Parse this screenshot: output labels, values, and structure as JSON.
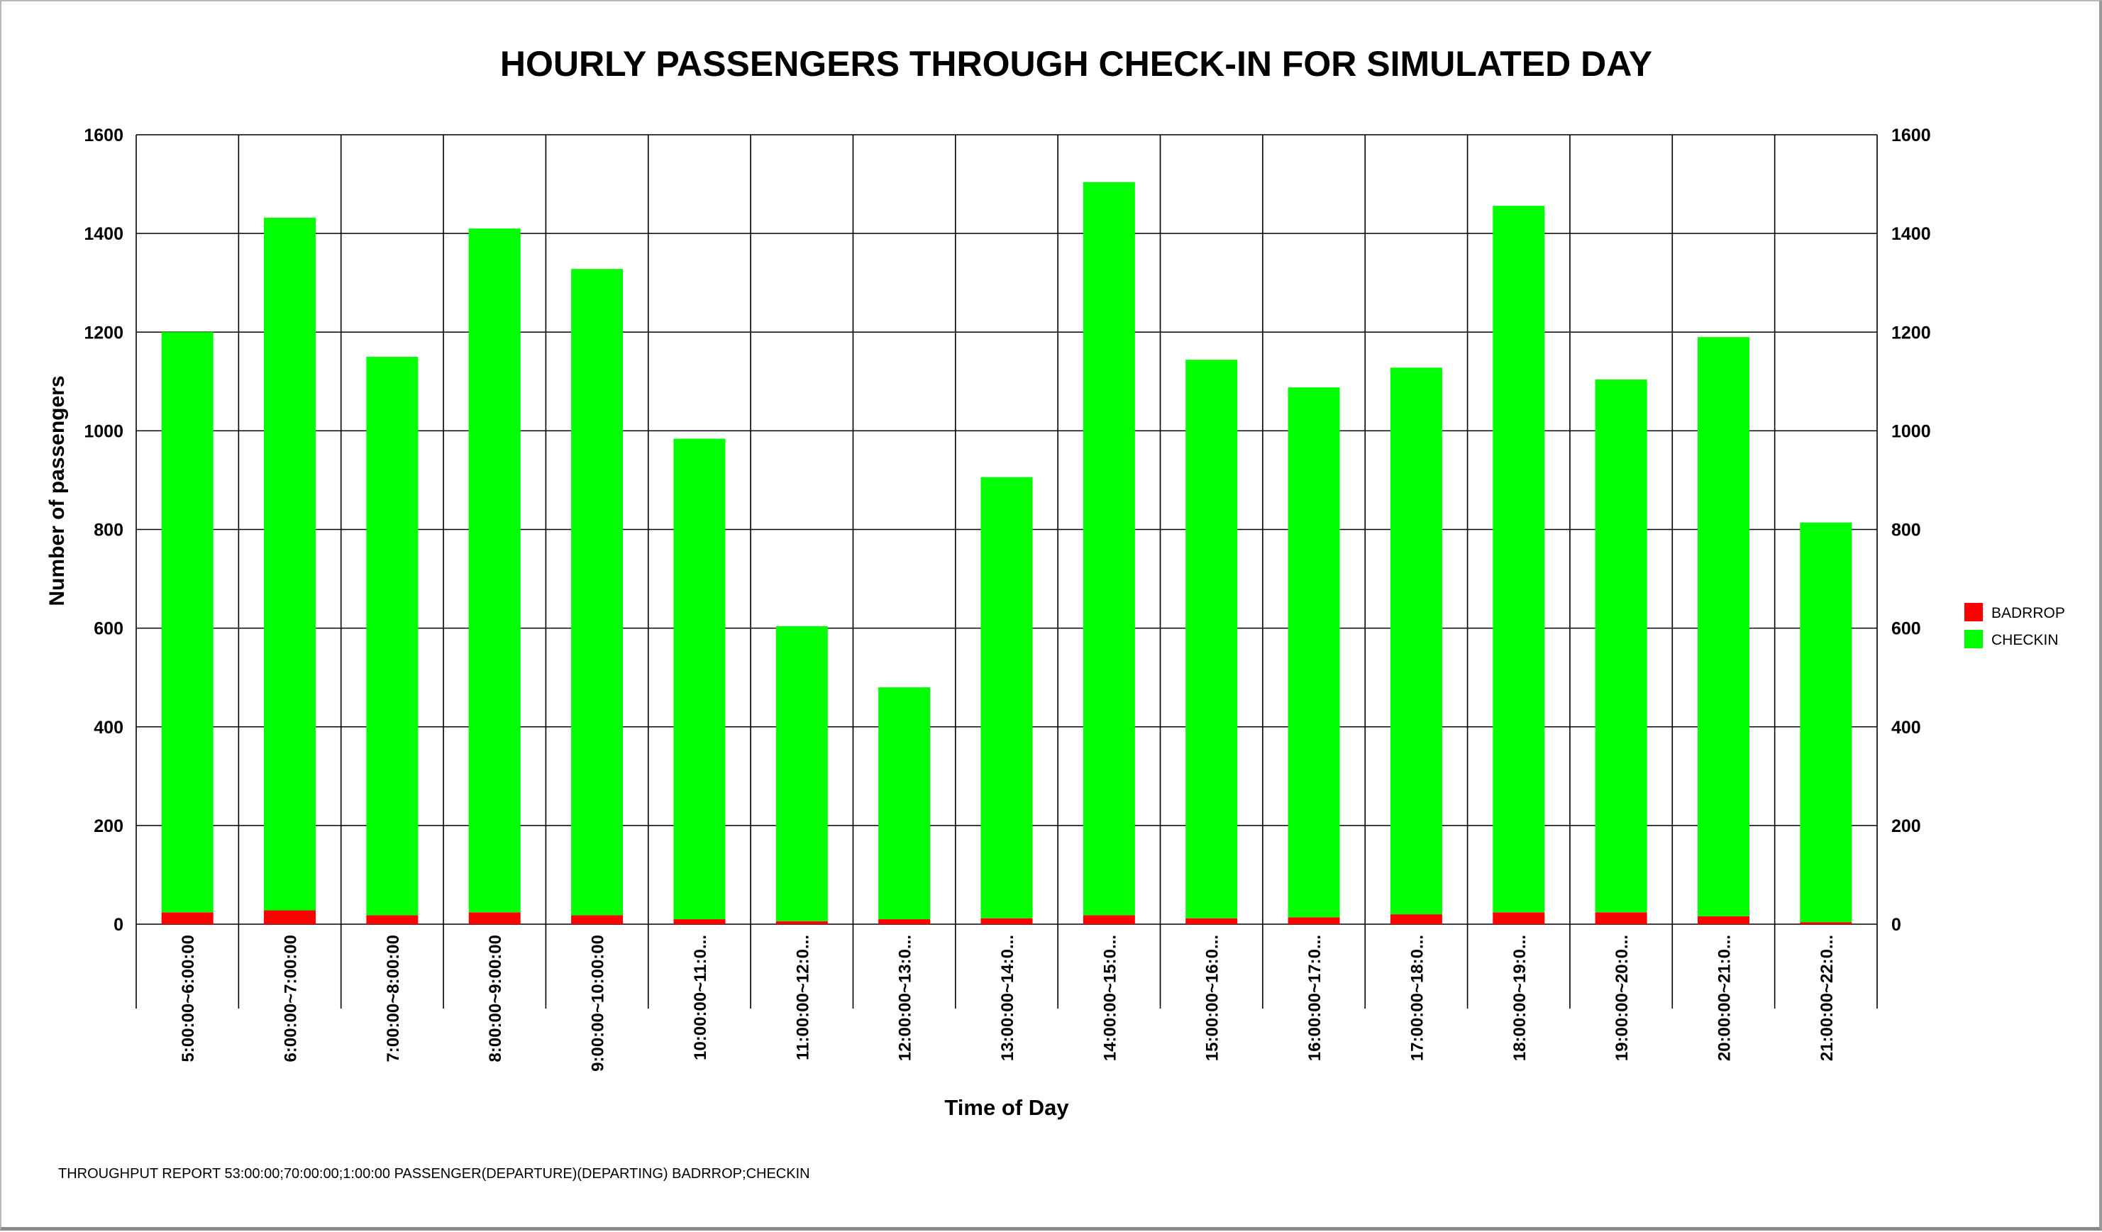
{
  "footer": {
    "text": "THROUGHPUT REPORT 53:00:00;70:00:00;1:00:00 PASSENGER(DEPARTURE)(DEPARTING) BADRROP;CHECKIN"
  },
  "chart_data": {
    "type": "bar",
    "stacked": true,
    "title": "HOURLY PASSENGERS THROUGH CHECK-IN FOR SIMULATED DAY",
    "xlabel": "Time of Day",
    "ylabel": "Number of passengers",
    "ylim": [
      0,
      1600
    ],
    "yticks": [
      0,
      200,
      400,
      600,
      800,
      1000,
      1200,
      1400,
      1600
    ],
    "secondary_y_axis": true,
    "grid": true,
    "legend_position": "right",
    "categories": [
      "5:00:00~6:00:00",
      "6:00:00~7:00:00",
      "7:00:00~8:00:00",
      "8:00:00~9:00:00",
      "9:00:00~10:00:00",
      "10:00:00~11:0...",
      "11:00:00~12:0...",
      "12:00:00~13:0...",
      "13:00:00~14:0...",
      "14:00:00~15:0...",
      "15:00:00~16:0...",
      "16:00:00~17:0...",
      "17:00:00~18:0...",
      "18:00:00~19:0...",
      "19:00:00~20:0...",
      "20:00:00~21:0...",
      "21:00:00~22:0..."
    ],
    "series": [
      {
        "name": "BADRROP",
        "color": "#ff0000",
        "values": [
          24,
          28,
          18,
          24,
          18,
          10,
          6,
          10,
          12,
          18,
          12,
          14,
          20,
          24,
          24,
          16,
          4
        ]
      },
      {
        "name": "CHECKIN",
        "color": "#00ff00",
        "values": [
          1176,
          1404,
          1132,
          1386,
          1310,
          974,
          598,
          470,
          894,
          1486,
          1132,
          1074,
          1108,
          1432,
          1080,
          1174,
          810
        ]
      }
    ]
  }
}
